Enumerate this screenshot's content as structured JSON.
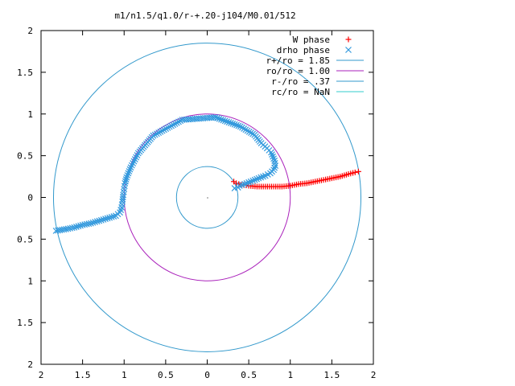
{
  "chart_data": {
    "type": "scatter",
    "title": "m1/n1.5/q1.0/r-+.20-j104/M0.01/512",
    "xlabel": "",
    "ylabel": "",
    "xlim": [
      -2,
      2
    ],
    "ylim": [
      -2,
      2
    ],
    "x_tick_labels": [
      "2",
      "1.5",
      "1",
      "0.5",
      "0",
      "0.5",
      "1",
      "1.5",
      "2"
    ],
    "y_tick_labels": [
      "2",
      "1.5",
      "1",
      "0.5",
      "0",
      "0.5",
      "1",
      "1.5",
      "2"
    ],
    "x_ticks": [
      -2,
      -1.5,
      -1,
      -0.5,
      0,
      0.5,
      1,
      1.5,
      2
    ],
    "y_ticks": [
      2,
      1.5,
      1,
      0.5,
      0,
      -0.5,
      -1,
      -1.5,
      -2
    ],
    "grid": false,
    "legend_position": "top-right",
    "series": [
      {
        "name": "W phase",
        "marker": "plus",
        "color": "#ff0000",
        "points": [
          [
            0.32,
            0.19
          ],
          [
            0.35,
            0.17
          ],
          [
            0.38,
            0.16
          ],
          [
            0.41,
            0.15
          ],
          [
            0.44,
            0.15
          ],
          [
            0.5,
            0.14
          ],
          [
            0.6,
            0.13
          ],
          [
            0.7,
            0.13
          ],
          [
            0.8,
            0.13
          ],
          [
            0.9,
            0.13
          ],
          [
            1.0,
            0.14
          ],
          [
            1.1,
            0.16
          ],
          [
            1.2,
            0.17
          ],
          [
            1.3,
            0.19
          ],
          [
            1.4,
            0.21
          ],
          [
            1.5,
            0.23
          ],
          [
            1.6,
            0.25
          ],
          [
            1.7,
            0.28
          ],
          [
            1.78,
            0.3
          ],
          [
            1.82,
            0.31
          ]
        ]
      },
      {
        "name": "drho phase",
        "marker": "cross",
        "color": "#3399dd",
        "points": [
          [
            -1.82,
            -0.4
          ],
          [
            -1.7,
            -0.38
          ],
          [
            -1.6,
            -0.36
          ],
          [
            -1.5,
            -0.33
          ],
          [
            -1.4,
            -0.31
          ],
          [
            -1.3,
            -0.28
          ],
          [
            -1.2,
            -0.25
          ],
          [
            -1.1,
            -0.22
          ],
          [
            -1.05,
            -0.18
          ],
          [
            -1.03,
            -0.12
          ],
          [
            -1.02,
            -0.05
          ],
          [
            -1.01,
            0.03
          ],
          [
            -1.0,
            0.1
          ],
          [
            -0.99,
            0.17
          ],
          [
            -0.97,
            0.24
          ],
          [
            -0.95,
            0.29
          ],
          [
            -0.92,
            0.36
          ],
          [
            -0.83,
            0.53
          ],
          [
            -0.65,
            0.74
          ],
          [
            -0.3,
            0.93
          ],
          [
            0.1,
            0.96
          ],
          [
            0.4,
            0.85
          ],
          [
            0.57,
            0.75
          ],
          [
            0.65,
            0.65
          ],
          [
            0.72,
            0.59
          ],
          [
            0.77,
            0.54
          ],
          [
            0.79,
            0.49
          ],
          [
            0.81,
            0.44
          ],
          [
            0.82,
            0.38
          ],
          [
            0.8,
            0.33
          ],
          [
            0.76,
            0.29
          ],
          [
            0.7,
            0.26
          ],
          [
            0.62,
            0.23
          ],
          [
            0.55,
            0.2
          ],
          [
            0.5,
            0.18
          ],
          [
            0.45,
            0.16
          ],
          [
            0.42,
            0.15
          ],
          [
            0.39,
            0.14
          ],
          [
            0.37,
            0.12
          ],
          [
            0.33,
            0.11
          ]
        ]
      },
      {
        "name": "r+/ro = 1.85",
        "type": "circle",
        "radius": 1.85,
        "color": "#3399cc"
      },
      {
        "name": "ro/ro = 1.00",
        "type": "circle",
        "radius": 1.0,
        "color": "#aa22bb"
      },
      {
        "name": "r-/ro = .37",
        "type": "circle",
        "radius": 0.37,
        "color": "#3399cc"
      },
      {
        "name": "rc/ro = NaN",
        "type": "circle",
        "radius": null,
        "color": "#33cccc"
      }
    ]
  }
}
